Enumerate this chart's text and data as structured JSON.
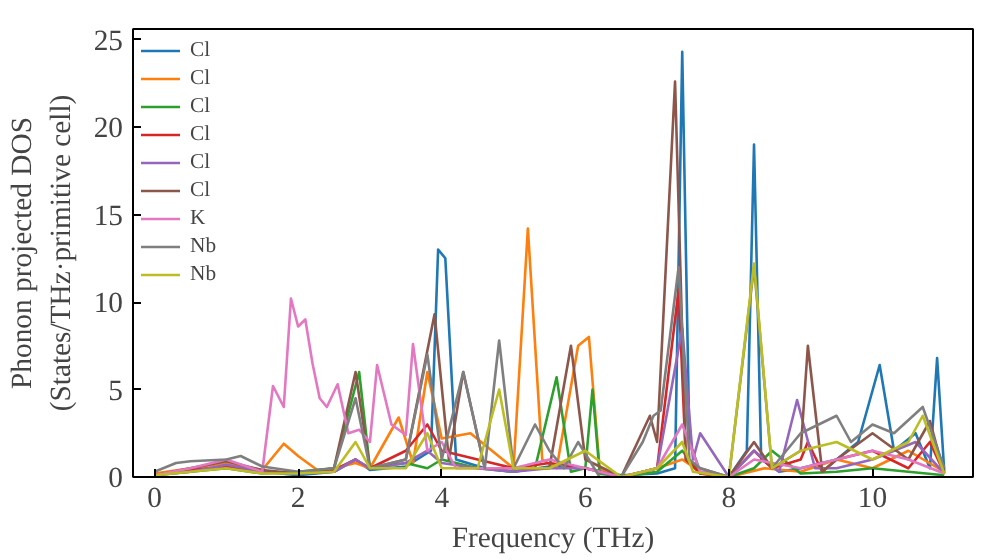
{
  "chart_data": {
    "type": "line",
    "xlabel": "Frequency (THz)",
    "ylabel": "Phonon projected DOS\n(States/THz·primitive cell)",
    "xlim": [
      -0.3,
      11.4
    ],
    "ylim": [
      0,
      25.6
    ],
    "xticks": [
      0,
      2,
      4,
      6,
      8,
      10
    ],
    "yticks": [
      0,
      5,
      10,
      15,
      20,
      25
    ],
    "grid": false,
    "legend": "top left",
    "series": [
      {
        "name": "Cl",
        "color": "#1f77b4",
        "x": [
          1.5,
          2,
          2.5,
          2.8,
          3,
          3.5,
          3.85,
          3.95,
          4.05,
          4.2,
          4.6,
          5,
          5.5,
          6,
          6.5,
          7,
          7.25,
          7.35,
          7.45,
          7.6,
          8,
          8.25,
          8.35,
          8.45,
          8.7,
          9,
          9.5,
          9.8,
          10.1,
          10.3,
          10.6,
          10.8,
          10.9,
          11
        ],
        "values": [
          0.3,
          0.1,
          0.3,
          1,
          0.4,
          0.6,
          1.5,
          13,
          12.5,
          1,
          0.5,
          0.3,
          0.6,
          0.5,
          0.1,
          0.2,
          0.5,
          24.3,
          2,
          0.3,
          0,
          1.5,
          19,
          1,
          0.3,
          0.5,
          1,
          2,
          6.4,
          1.5,
          2.5,
          0.5,
          6.8,
          0.3
        ]
      },
      {
        "name": "Cl",
        "color": "#ff7f0e",
        "x": [
          0,
          0.5,
          1,
          1.5,
          1.8,
          2,
          2.3,
          2.5,
          2.8,
          3,
          3.4,
          3.6,
          3.8,
          4,
          4.4,
          4.7,
          5,
          5.2,
          5.4,
          5.6,
          5.9,
          6.05,
          6.2,
          6.5,
          7,
          7.35,
          7.6,
          8,
          8.5,
          9,
          9.5,
          10,
          10.5,
          11
        ],
        "values": [
          0.2,
          0.5,
          0.8,
          0.4,
          1.9,
          1.2,
          0.3,
          0.5,
          0.8,
          0.5,
          3.4,
          0.8,
          6,
          2.2,
          2.5,
          1.5,
          0.5,
          14.2,
          1,
          0.5,
          7.5,
          8,
          0.5,
          0,
          0.5,
          1,
          0.3,
          0,
          0.5,
          0.3,
          1,
          0.5,
          1.5,
          0.3
        ]
      },
      {
        "name": "Cl",
        "color": "#2ca02c",
        "x": [
          0,
          0.5,
          1,
          1.5,
          2,
          2.5,
          2.85,
          3,
          3.5,
          3.8,
          4,
          4.5,
          5,
          5.3,
          5.6,
          5.8,
          6,
          6.1,
          6.2,
          6.5,
          7,
          7.35,
          7.6,
          8,
          8.35,
          8.6,
          9,
          9.5,
          10,
          10.5,
          11
        ],
        "values": [
          0.1,
          0.3,
          0.5,
          0.2,
          0.3,
          0.5,
          6,
          0.5,
          0.8,
          0.5,
          1,
          0.5,
          0.3,
          0.5,
          5.7,
          0.3,
          0.5,
          5,
          0.2,
          0,
          0.3,
          1.5,
          0.2,
          0,
          0.5,
          1.5,
          0.2,
          0.3,
          0.5,
          0.3,
          0.1
        ]
      },
      {
        "name": "Cl",
        "color": "#d62728",
        "x": [
          0,
          0.5,
          1,
          1.5,
          2,
          2.5,
          2.8,
          3,
          3.5,
          3.8,
          4,
          4.5,
          5,
          5.5,
          6,
          6.5,
          7,
          7.3,
          7.4,
          7.6,
          8,
          8.35,
          8.6,
          9,
          9.1,
          9.3,
          9.5,
          10,
          10.5,
          10.8,
          11
        ],
        "values": [
          0.1,
          0.4,
          0.6,
          0.3,
          0.2,
          0.4,
          1,
          0.5,
          1.5,
          3,
          1.5,
          1,
          0.5,
          0.8,
          0.5,
          0,
          0.5,
          10.7,
          1,
          0.2,
          0,
          1.5,
          0.5,
          1,
          2,
          0.3,
          1,
          1.5,
          0.5,
          2,
          0.2
        ]
      },
      {
        "name": "Cl",
        "color": "#9467bd",
        "x": [
          0,
          0.5,
          1,
          1.5,
          2,
          2.5,
          2.8,
          3,
          3.5,
          3.8,
          4,
          4.5,
          5,
          5.5,
          6,
          6.5,
          7,
          7.35,
          7.5,
          7.6,
          8,
          8.35,
          8.7,
          8.95,
          9.2,
          9.5,
          10,
          10.6,
          11
        ],
        "values": [
          0.1,
          0.3,
          0.7,
          0.3,
          0.2,
          0.3,
          1,
          0.5,
          0.8,
          1.5,
          0.8,
          0.5,
          0.3,
          0.5,
          0.5,
          0,
          0.5,
          8.5,
          1,
          2.5,
          0,
          1.5,
          0.3,
          4.4,
          0.5,
          0.5,
          1,
          2,
          0.2
        ]
      },
      {
        "name": "Cl",
        "color": "#8c564b",
        "x": [
          0,
          0.5,
          1,
          1.5,
          2,
          2.5,
          2.8,
          3,
          3.5,
          3.9,
          4.1,
          4.3,
          4.6,
          5,
          5.5,
          5.8,
          6,
          6.5,
          6.9,
          7.0,
          7.25,
          7.4,
          7.6,
          8,
          8.35,
          8.6,
          9,
          9.1,
          9.3,
          9.5,
          10,
          10.5,
          10.8,
          11
        ],
        "values": [
          0.1,
          0.5,
          0.9,
          0.4,
          0.2,
          0.5,
          6,
          0.5,
          1,
          9.3,
          1,
          6,
          0.5,
          0.5,
          0.5,
          7.5,
          1,
          0,
          3.5,
          2,
          22.6,
          1,
          0.5,
          0,
          2,
          0.5,
          1.5,
          7.5,
          0.3,
          1,
          2.5,
          1,
          3.2,
          0.2
        ]
      },
      {
        "name": "K",
        "color": "#e377c2",
        "x": [
          0,
          0.5,
          1,
          1.5,
          1.65,
          1.8,
          1.9,
          2.0,
          2.1,
          2.2,
          2.3,
          2.4,
          2.55,
          2.7,
          2.85,
          3.0,
          3.1,
          3.3,
          3.5,
          3.6,
          3.8,
          4.0,
          4.2,
          4.5,
          5,
          5.5,
          6,
          6.5,
          7,
          7.35,
          7.6,
          8,
          8.35,
          9,
          9.5,
          10,
          10.5,
          11
        ],
        "values": [
          0.1,
          0.5,
          1,
          0.3,
          5.2,
          4,
          10.2,
          8.6,
          9,
          6.5,
          4.5,
          4,
          5.3,
          2.5,
          2.7,
          2,
          6.4,
          3,
          2.4,
          7.6,
          1.5,
          2,
          0.5,
          0.5,
          0.5,
          1,
          0.5,
          0,
          0.5,
          3,
          0.3,
          0,
          1,
          0.5,
          1,
          1.5,
          1,
          0.2
        ]
      },
      {
        "name": "Nb",
        "color": "#7f7f7f",
        "x": [
          0,
          0.3,
          0.5,
          1,
          1.2,
          1.5,
          2,
          2.5,
          2.8,
          3,
          3.5,
          3.8,
          4,
          4.3,
          4.6,
          4.8,
          5,
          5.3,
          5.5,
          5.7,
          5.9,
          6.2,
          6.5,
          6.8,
          6.95,
          7.05,
          7.3,
          7.45,
          7.6,
          8,
          8.35,
          8.6,
          9,
          9.5,
          9.7,
          10,
          10.3,
          10.7,
          11
        ],
        "values": [
          0.3,
          0.8,
          0.9,
          1,
          1.2,
          0.6,
          0.3,
          0.5,
          4.5,
          0.5,
          1,
          7,
          1,
          6,
          0.5,
          7.8,
          0.5,
          3,
          1.5,
          0.5,
          2,
          0,
          0,
          2,
          3.5,
          3.8,
          12,
          1,
          0.5,
          0,
          12,
          0.5,
          2.5,
          3.5,
          2,
          3,
          2.5,
          4,
          0.5
        ]
      },
      {
        "name": "Nb",
        "color": "#bcbd22",
        "x": [
          0,
          0.5,
          1,
          1.5,
          2,
          2.5,
          2.8,
          3,
          3.5,
          3.8,
          4,
          4.5,
          4.8,
          5,
          5.5,
          6,
          6.5,
          7,
          7.35,
          7.5,
          8,
          8.35,
          8.6,
          9,
          9.5,
          10,
          10.5,
          10.7,
          11
        ],
        "values": [
          0.1,
          0.3,
          0.5,
          0.2,
          0.2,
          0.3,
          2,
          0.5,
          0.5,
          2.5,
          0.5,
          0.5,
          5,
          0.5,
          0.5,
          1.5,
          0,
          0.5,
          2,
          0.3,
          0,
          12.2,
          0.5,
          1.5,
          2,
          1,
          2,
          3.5,
          0.2
        ]
      }
    ]
  }
}
